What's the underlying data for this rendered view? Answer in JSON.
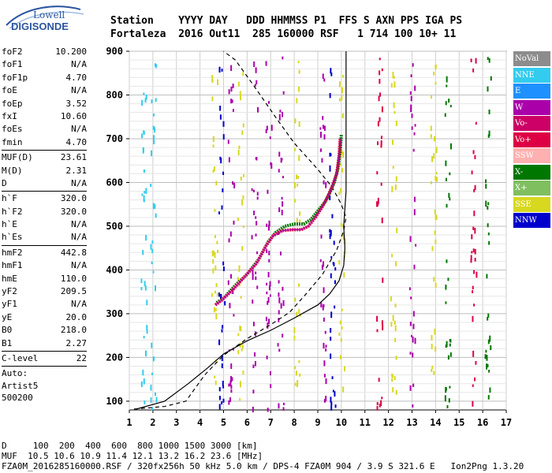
{
  "logo": {
    "line1": "Lowell",
    "line2": "DIGISONDE"
  },
  "header": {
    "line1": "Station    YYYY DAY   DDD HHMMSS P1  FFS S AXN PPS IGA PS",
    "line2": "Fortaleza  2016 Out11  285 160000 RSF   1 714 100 10+ 11"
  },
  "params": {
    "groups": [
      [
        [
          "foF2",
          "10.200"
        ],
        [
          "foF1",
          "N/A"
        ],
        [
          "foF1p",
          "4.70"
        ],
        [
          "foE",
          "N/A"
        ],
        [
          "foEp",
          "3.52"
        ],
        [
          "fxI",
          "10.60"
        ],
        [
          "foEs",
          "N/A"
        ],
        [
          "fmin",
          "4.70"
        ]
      ],
      [
        [
          "MUF(D)",
          "23.61"
        ],
        [
          "M(D)",
          "2.31"
        ],
        [
          "D",
          "N/A"
        ]
      ],
      [
        [
          "h`F",
          "320.0"
        ],
        [
          "h`F2",
          "320.0"
        ],
        [
          "h`E",
          "N/A"
        ],
        [
          "h`Es",
          "N/A"
        ]
      ],
      [
        [
          "hmF2",
          "442.8"
        ],
        [
          "hmF1",
          "N/A"
        ],
        [
          "hmE",
          "110.0"
        ],
        [
          "yF2",
          "209.5"
        ],
        [
          "yF1",
          "N/A"
        ],
        [
          "yE",
          "20.0"
        ],
        [
          "B0",
          "218.0"
        ],
        [
          "B1",
          "2.27"
        ]
      ],
      [
        [
          "C-level",
          "22"
        ]
      ]
    ],
    "auto_lines": [
      "Auto:",
      "Artist5",
      "500200"
    ]
  },
  "legend": [
    {
      "label": "NoVal",
      "color": "#8c8c8c"
    },
    {
      "label": "NNE",
      "color": "#33ccee"
    },
    {
      "label": "E",
      "color": "#1e90ff"
    },
    {
      "label": "W",
      "color": "#aa00aa"
    },
    {
      "label": "Vo-",
      "color": "#cc0066"
    },
    {
      "label": "Vo+",
      "color": "#dd0044"
    },
    {
      "label": "SSW",
      "color": "#ffb0b0"
    },
    {
      "label": "X-",
      "color": "#007700"
    },
    {
      "label": "X+",
      "color": "#7fbf5f"
    },
    {
      "label": "SSE",
      "color": "#d8d820"
    },
    {
      "label": "NNW",
      "color": "#0000cc"
    }
  ],
  "footer": {
    "line1": "D     100  200  400  600  800 1000 1500 3000 [km]",
    "line2": "MUF  10.5 10.6 10.9 11.4 12.1 13.2 16.2 23.6 [MHz]",
    "line3": "FZA0M_2016285160000.RSF / 320fx256h 50 kHz 5.0 km / DPS-4 FZA0M 904 / 3.9 S 321.6 E   Ion2Png 1.3.20"
  },
  "chart_data": {
    "type": "scatter",
    "title": "",
    "xlabel": "",
    "ylabel": "",
    "xlim": [
      1,
      17
    ],
    "ylim": [
      80,
      900
    ],
    "x_ticks": [
      1,
      2,
      3,
      4,
      5,
      6,
      7,
      8,
      9,
      10,
      11,
      12,
      13,
      14,
      15,
      16,
      17
    ],
    "y_ticks": [
      100,
      200,
      300,
      400,
      500,
      600,
      700,
      800,
      900
    ],
    "grid": true,
    "series": [
      {
        "kind": "solid-line",
        "x": [
          1.3,
          2.5,
          3.5,
          4.3,
          5.0,
          6.0,
          7.0,
          8.0,
          9.0,
          9.5,
          9.9,
          10.1,
          10.15,
          10.1,
          10.2,
          10.2,
          10.2,
          10.2
        ],
        "y": [
          82,
          100,
          140,
          175,
          208,
          238,
          262,
          290,
          320,
          345,
          375,
          410,
          450,
          500,
          580,
          700,
          820,
          900
        ]
      },
      {
        "kind": "dashed-line",
        "x": [
          1.2,
          2.5,
          3.4,
          4.2,
          5.0,
          6.0,
          7.0,
          7.8,
          8.5,
          9.2,
          9.8,
          10.1,
          10.2,
          10.0,
          9.6,
          9.0,
          8.0,
          7.2,
          6.3,
          5.5,
          5.0
        ],
        "y": [
          82,
          88,
          100,
          160,
          205,
          243,
          275,
          303,
          345,
          390,
          445,
          490,
          520,
          550,
          590,
          630,
          690,
          750,
          820,
          880,
          900
        ]
      },
      {
        "name": "X-",
        "kind": "trace",
        "x": [
          4.7,
          5.0,
          5.5,
          6.0,
          6.5,
          6.9,
          7.2,
          7.6,
          8.0,
          8.4,
          8.7,
          9.0,
          9.3,
          9.5,
          9.7,
          9.85,
          9.95,
          10.0
        ],
        "y": [
          325,
          335,
          365,
          390,
          425,
          465,
          485,
          500,
          505,
          505,
          515,
          535,
          555,
          575,
          600,
          630,
          670,
          710
        ]
      },
      {
        "name": "Vo+",
        "kind": "trace",
        "x": [
          4.65,
          4.9,
          5.4,
          5.9,
          6.4,
          6.8,
          7.1,
          7.5,
          7.9,
          8.3,
          8.6,
          8.9,
          9.2,
          9.4,
          9.6,
          9.8,
          9.9,
          9.95
        ],
        "y": [
          320,
          330,
          355,
          385,
          415,
          455,
          478,
          490,
          492,
          492,
          500,
          520,
          545,
          565,
          590,
          620,
          660,
          700
        ]
      }
    ]
  }
}
